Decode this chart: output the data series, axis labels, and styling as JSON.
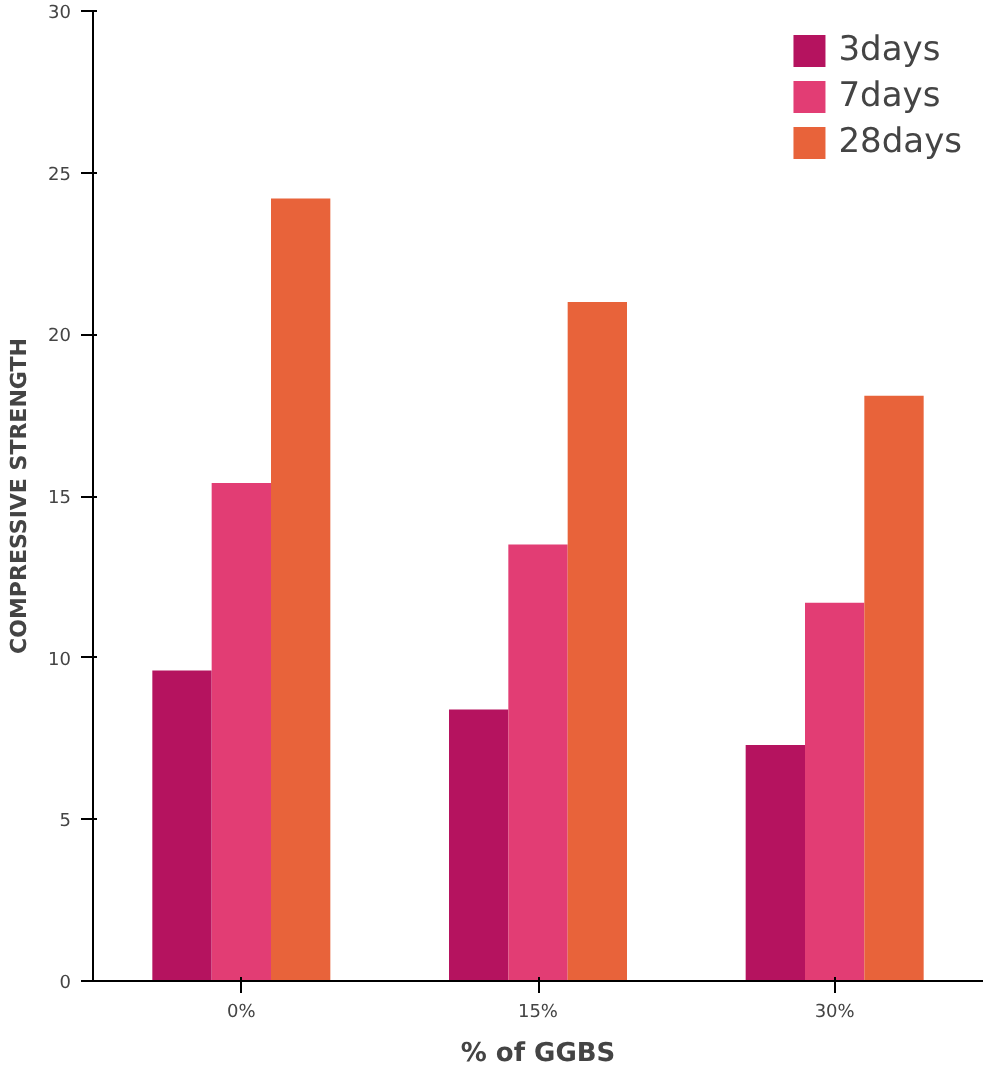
{
  "chart_data": {
    "type": "bar",
    "xlabel": "% of GGBS",
    "ylabel": "COMPRESSIVE STRENGTH",
    "categories": [
      "0%",
      "15%",
      "30%"
    ],
    "series": [
      {
        "name": "3days",
        "color": "#b5135f",
        "values": [
          9.6,
          8.4,
          7.3
        ]
      },
      {
        "name": "7days",
        "color": "#e23d74",
        "values": [
          15.4,
          13.5,
          11.7
        ]
      },
      {
        "name": "28days",
        "color": "#e8633a",
        "values": [
          24.2,
          21.0,
          18.1
        ]
      }
    ],
    "ylim": [
      0,
      30
    ],
    "yticks": [
      0,
      5,
      10,
      15,
      20,
      25,
      30
    ],
    "grid": false,
    "legend": "top right"
  }
}
